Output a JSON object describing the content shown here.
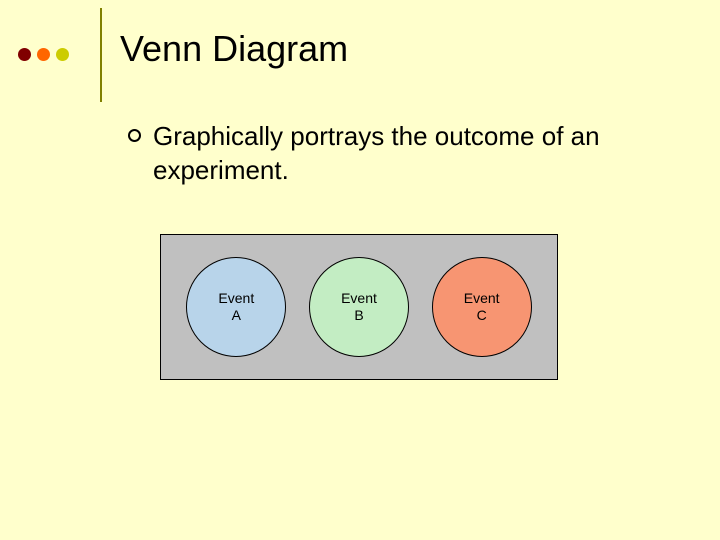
{
  "header": {
    "dots": [
      "#800000",
      "#ff6600",
      "#cccc00"
    ],
    "divider_color": "#808000"
  },
  "title": "Venn Diagram",
  "bullet": {
    "text": "Graphically portrays  the outcome of an experiment."
  },
  "venn": {
    "box_bg": "#c0c0c0",
    "circles": [
      {
        "line1": "Event",
        "line2": "A",
        "fill": "#b8d4ea"
      },
      {
        "line1": "Event",
        "line2": "B",
        "fill": "#c3edc3"
      },
      {
        "line1": "Event",
        "line2": "C",
        "fill": "#f79572"
      }
    ]
  },
  "background_color": "#ffffcc"
}
